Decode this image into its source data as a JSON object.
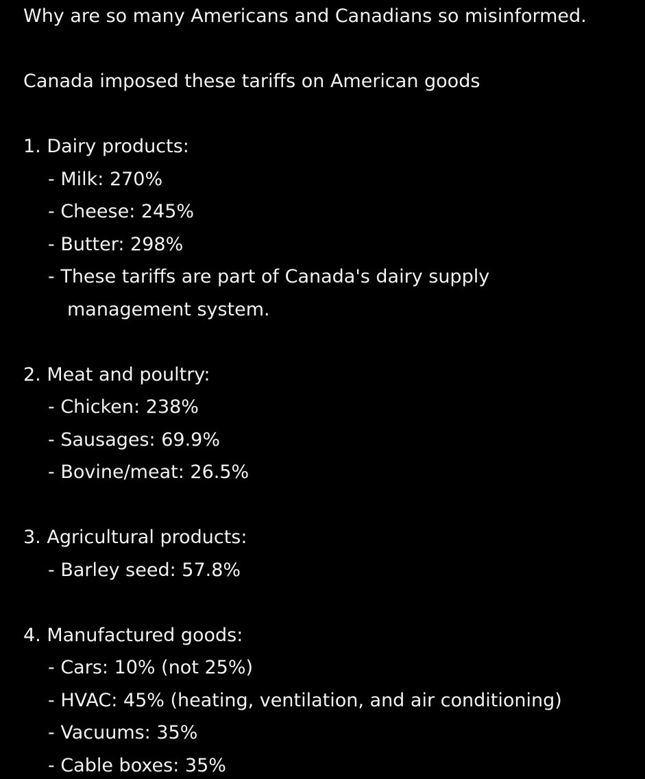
{
  "post": {
    "title": "Why are so many Americans and Canadians so misinformed.",
    "intro": "Canada imposed these tariffs on American goods",
    "sections": [
      {
        "heading": "1. Dairy products:",
        "items": [
          "- Milk: 270%",
          "- Cheese: 245%",
          "- Butter: 298%",
          [
            "- These tariffs are part of Canada's dairy supply",
            "management system."
          ]
        ]
      },
      {
        "heading": "2. Meat and poultry:",
        "items": [
          "- Chicken: 238%",
          "- Sausages: 69.9%",
          "- Bovine/meat: 26.5%"
        ]
      },
      {
        "heading": "3. Agricultural products:",
        "items": [
          "- Barley seed: 57.8%"
        ]
      },
      {
        "heading": "4. Manufactured goods:",
        "items": [
          "- Cars: 10% (not 25%)",
          "- HVAC: 45% (heating, ventilation, and air conditioning)",
          "- Vacuums: 35%",
          "- Cable boxes: 35%"
        ]
      }
    ]
  }
}
